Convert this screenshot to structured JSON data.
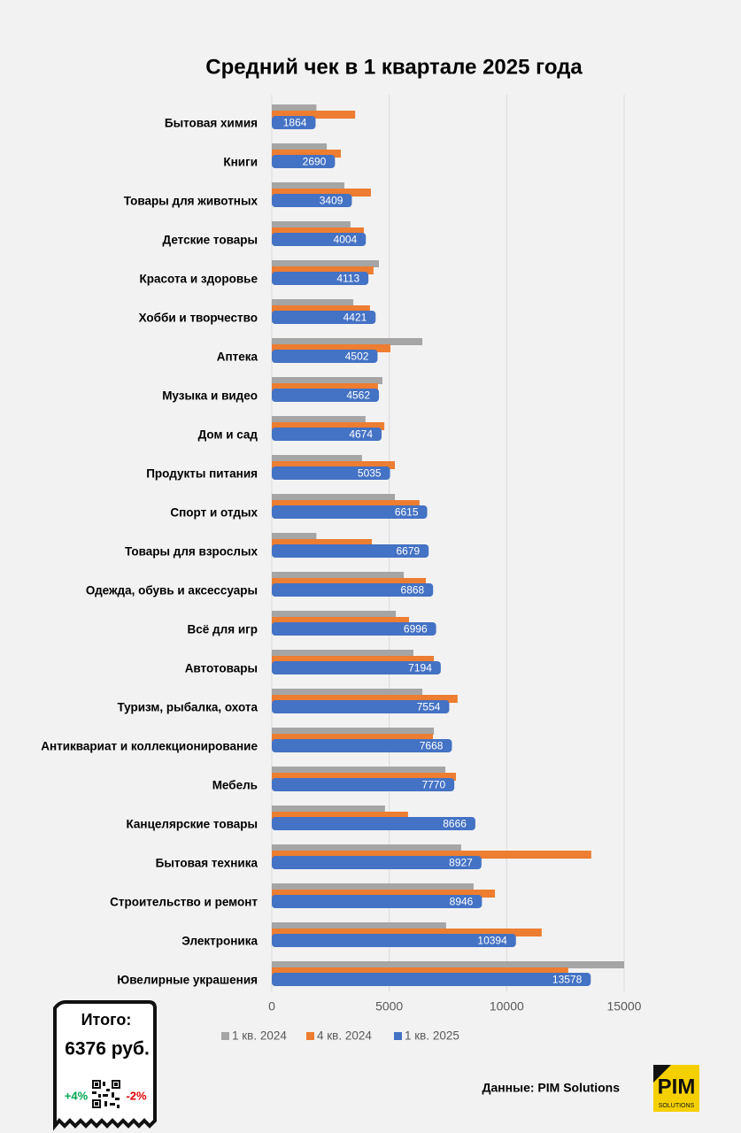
{
  "chart_data": {
    "type": "hbar",
    "title": "Средний чек в 1 квартале 2025 года",
    "categories": [
      "Бытовая химия",
      "Книги",
      "Товары для животных",
      "Детские товары",
      "Красота и здоровье",
      "Хобби и творчество",
      "Аптека",
      "Музыка и видео",
      "Дом и сад",
      "Продукты питания",
      "Спорт и отдых",
      "Товары для взрослых",
      "Одежда, обувь и аксессуары",
      "Всё для игр",
      "Автотовары",
      "Туризм, рыбалка, охота",
      "Антиквариат и коллекционирование",
      "Мебель",
      "Канцелярские товары",
      "Бытовая техника",
      "Строительство и ремонт",
      "Электроника",
      "Ювелирные украшения"
    ],
    "series": [
      {
        "name": "1 кв. 2024",
        "color": "#a5a5a5",
        "values": [
          1900,
          2340,
          3090,
          3350,
          4560,
          3470,
          6410,
          4710,
          3990,
          3840,
          5240,
          1900,
          5620,
          5280,
          6030,
          6410,
          6900,
          7390,
          4820,
          8060,
          8590,
          7420,
          15000
        ]
      },
      {
        "name": "4 кв. 2024",
        "color": "#ed7d31",
        "values": [
          3550,
          2940,
          4220,
          3920,
          4330,
          4180,
          5050,
          4520,
          4790,
          5240,
          6290,
          4260,
          6560,
          5840,
          6900,
          7910,
          6860,
          7840,
          5800,
          13600,
          9500,
          11490,
          12620
        ]
      },
      {
        "name": "1 кв. 2025",
        "color": "#4472c4",
        "values": [
          1864,
          2690,
          3409,
          4004,
          4113,
          4421,
          4502,
          4562,
          4674,
          5035,
          6615,
          6679,
          6868,
          6996,
          7194,
          7554,
          7668,
          7770,
          8666,
          8927,
          8946,
          10394,
          13578
        ]
      }
    ],
    "xlim": [
      0,
      15000
    ],
    "xticks": [
      0,
      5000,
      10000,
      15000
    ],
    "grid": true,
    "legend": "bottom"
  },
  "summary": {
    "title": "Итого:",
    "value": "6376 руб.",
    "up": "+4%",
    "down": "-2%"
  },
  "source": "Данные: PIM Solutions",
  "logo": {
    "name": "PIM",
    "sub": "SOLUTIONS"
  }
}
